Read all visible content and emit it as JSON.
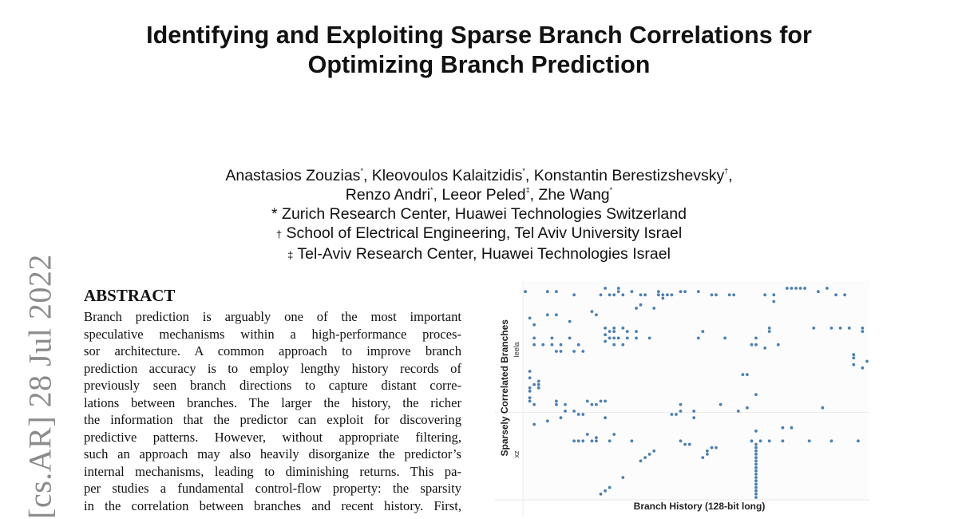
{
  "paper": {
    "title_lines": [
      "Identifying and Exploiting Sparse Branch Correlations for",
      "Optimizing Branch Prediction"
    ],
    "authors_line1": [
      {
        "name": "Anastasios Zouzias",
        "mark": "*",
        "sep": ", "
      },
      {
        "name": "Kleovoulos Kalaitzidis",
        "mark": "*",
        "sep": ", "
      },
      {
        "name": "Konstantin Berestizshevsky",
        "mark": "†",
        "sep": ","
      }
    ],
    "authors_line2": [
      {
        "name": "Renzo Andri",
        "mark": "*",
        "sep": ", "
      },
      {
        "name": "Leeor Peled",
        "mark": "‡",
        "sep": ", "
      },
      {
        "name": "Zhe Wang",
        "mark": "*",
        "sep": ""
      }
    ],
    "affiliations": [
      {
        "mark": "*",
        "text": "Zurich Research Center, Huawei Technologies Switzerland"
      },
      {
        "mark": "†",
        "text": "School of Electrical Engineering, Tel Aviv University Israel"
      },
      {
        "mark": "‡",
        "text": "Tel-Aviv Research Center, Huawei Technologies Israel"
      }
    ],
    "arxiv_stamp": "[cs.AR]  28 Jul 2022",
    "abstract_heading": "ABSTRACT",
    "abstract_lines": [
      "Branch prediction is arguably one of the most important",
      "speculative mechanisms within a high-performance proces-",
      "sor architecture.  A common approach to improve branch",
      "prediction accuracy is to employ lengthy history records of",
      "previously seen branch directions to capture distant corre-",
      "lations between branches. The larger the history, the richer",
      "the information that the predictor can exploit for discovering",
      "predictive patterns. However, without appropriate filtering,",
      "such an approach may also heavily disorganize the predictor’s",
      "internal mechanisms, leading to diminishing returns. This pa-",
      "per studies a fundamental control-flow property: the sparsity",
      "in the correlation between branches and recent history. First,"
    ]
  },
  "chart_data": {
    "type": "scatter",
    "xlabel": "Branch History (128-bit long)",
    "ylabel": "Sparsely Correlated Branches",
    "ytick_labels": [
      {
        "label": "leela",
        "row": 18.5
      },
      {
        "label": "xz",
        "row": 50
      }
    ],
    "xlim": [
      0,
      77
    ],
    "ylim": [
      0,
      63
    ],
    "grid": true,
    "marker_color": "#4a7fb5",
    "points": [
      [
        0,
        1
      ],
      [
        5,
        1
      ],
      [
        7,
        1
      ],
      [
        11,
        2
      ],
      [
        18,
        0
      ],
      [
        17,
        2
      ],
      [
        19,
        2
      ],
      [
        20,
        2
      ],
      [
        21,
        0
      ],
      [
        21,
        1
      ],
      [
        22,
        2
      ],
      [
        24,
        1
      ],
      [
        26,
        2
      ],
      [
        27,
        2
      ],
      [
        30,
        1
      ],
      [
        30,
        2
      ],
      [
        31,
        2
      ],
      [
        31,
        3
      ],
      [
        32,
        2
      ],
      [
        33,
        2
      ],
      [
        35,
        1
      ],
      [
        36,
        1
      ],
      [
        39,
        1
      ],
      [
        42,
        2
      ],
      [
        43,
        2
      ],
      [
        46,
        2
      ],
      [
        47,
        2
      ],
      [
        54,
        2
      ],
      [
        56,
        2
      ],
      [
        56,
        4
      ],
      [
        59,
        0
      ],
      [
        60,
        0
      ],
      [
        61,
        0
      ],
      [
        62,
        0
      ],
      [
        63,
        0
      ],
      [
        66,
        1
      ],
      [
        68,
        0
      ],
      [
        70,
        2
      ],
      [
        72,
        2
      ],
      [
        25,
        6
      ],
      [
        26,
        5
      ],
      [
        29,
        6
      ],
      [
        15,
        7
      ],
      [
        16,
        8
      ],
      [
        5,
        8
      ],
      [
        7,
        8
      ],
      [
        1,
        9
      ],
      [
        10,
        10
      ],
      [
        2,
        11
      ],
      [
        18,
        12
      ],
      [
        19,
        13
      ],
      [
        20,
        12
      ],
      [
        20,
        13
      ],
      [
        22,
        12
      ],
      [
        23,
        13
      ],
      [
        25,
        13
      ],
      [
        18,
        14
      ],
      [
        40,
        13
      ],
      [
        55,
        12
      ],
      [
        55,
        13
      ],
      [
        65,
        12
      ],
      [
        69,
        12
      ],
      [
        71,
        12
      ],
      [
        73,
        12
      ],
      [
        76,
        12
      ],
      [
        76,
        13
      ],
      [
        2,
        15
      ],
      [
        6,
        15
      ],
      [
        10,
        15
      ],
      [
        19,
        15
      ],
      [
        20,
        15
      ],
      [
        21,
        15
      ],
      [
        23,
        15
      ],
      [
        25,
        15
      ],
      [
        28,
        15
      ],
      [
        39,
        15
      ],
      [
        45,
        15
      ],
      [
        52,
        15
      ],
      [
        18,
        16
      ],
      [
        2,
        17
      ],
      [
        4,
        17
      ],
      [
        6,
        17
      ],
      [
        8,
        17
      ],
      [
        12,
        17
      ],
      [
        20,
        17
      ],
      [
        22,
        17
      ],
      [
        51,
        17
      ],
      [
        52,
        17
      ],
      [
        57,
        17
      ],
      [
        54,
        18
      ],
      [
        7,
        19
      ],
      [
        8,
        19
      ],
      [
        11,
        19
      ],
      [
        13,
        19
      ],
      [
        74,
        20
      ],
      [
        74,
        21
      ],
      [
        74,
        23
      ],
      [
        77,
        22
      ],
      [
        76,
        24
      ],
      [
        1,
        25
      ],
      [
        49,
        26
      ],
      [
        50,
        26
      ],
      [
        1,
        27
      ],
      [
        3,
        28
      ],
      [
        2,
        29
      ],
      [
        3,
        29
      ],
      [
        3,
        30
      ],
      [
        1,
        30
      ],
      [
        1,
        31
      ],
      [
        1,
        33
      ],
      [
        1,
        34
      ],
      [
        2,
        35
      ],
      [
        7,
        34
      ],
      [
        7,
        35
      ],
      [
        9,
        35
      ],
      [
        14,
        34
      ],
      [
        15,
        35
      ],
      [
        16,
        35
      ],
      [
        17,
        34
      ],
      [
        18,
        34
      ],
      [
        35,
        35
      ],
      [
        44,
        35
      ],
      [
        52,
        32
      ],
      [
        50,
        36
      ],
      [
        67,
        36
      ],
      [
        9,
        37
      ],
      [
        11,
        37
      ],
      [
        12,
        38
      ],
      [
        13,
        38
      ],
      [
        18,
        39
      ],
      [
        8,
        39
      ],
      [
        33,
        38
      ],
      [
        34,
        38
      ],
      [
        35,
        37
      ],
      [
        38,
        37
      ],
      [
        38,
        39
      ],
      [
        48,
        37
      ],
      [
        2,
        41
      ],
      [
        5,
        40
      ],
      [
        58,
        42
      ],
      [
        60,
        42
      ],
      [
        52,
        43
      ],
      [
        14,
        44
      ],
      [
        20,
        44
      ],
      [
        11,
        46
      ],
      [
        12,
        46
      ],
      [
        13,
        46
      ],
      [
        15,
        46
      ],
      [
        16,
        45
      ],
      [
        16,
        46
      ],
      [
        19,
        46
      ],
      [
        24,
        46
      ],
      [
        35,
        46
      ],
      [
        36,
        47
      ],
      [
        37,
        47
      ],
      [
        51,
        46
      ],
      [
        53,
        46
      ],
      [
        55,
        46
      ],
      [
        58,
        46
      ],
      [
        64,
        46
      ],
      [
        69,
        46
      ],
      [
        75,
        46
      ],
      [
        42,
        48
      ],
      [
        43,
        48
      ],
      [
        41,
        49
      ],
      [
        41,
        50
      ],
      [
        40,
        51
      ],
      [
        29,
        49
      ],
      [
        28,
        50
      ],
      [
        27,
        51
      ],
      [
        26,
        52
      ],
      [
        22,
        57
      ],
      [
        19,
        60
      ],
      [
        18,
        61
      ],
      [
        17,
        62
      ],
      [
        52,
        47
      ],
      [
        52,
        48
      ],
      [
        52,
        49
      ],
      [
        52,
        50
      ],
      [
        52,
        51
      ],
      [
        52,
        52
      ],
      [
        52,
        53
      ],
      [
        52,
        54
      ],
      [
        52,
        55
      ],
      [
        52,
        56
      ],
      [
        52,
        57
      ],
      [
        52,
        58
      ],
      [
        52,
        59
      ],
      [
        52,
        60
      ],
      [
        52,
        61
      ],
      [
        52,
        62
      ],
      [
        52,
        63
      ]
    ]
  }
}
